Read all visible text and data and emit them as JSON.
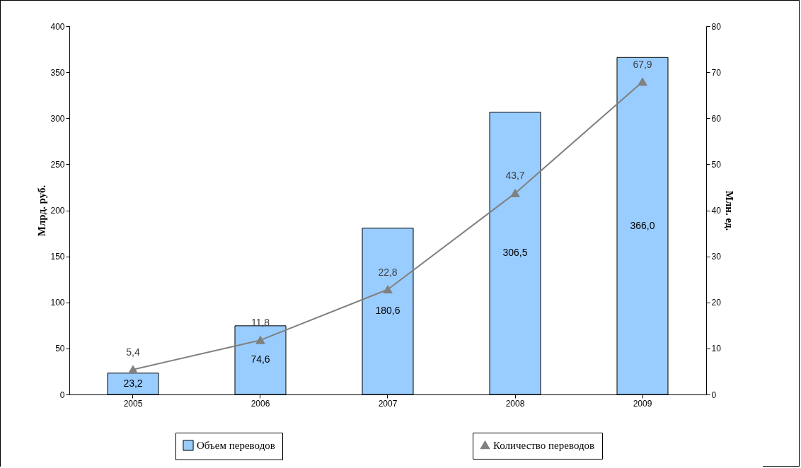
{
  "chart_data": {
    "type": "bar",
    "categories": [
      "2005",
      "2006",
      "2007",
      "2008",
      "2009"
    ],
    "ylabel": "Млрд. руб.",
    "y2label": "Млн. ед.",
    "ylim": [
      0,
      400
    ],
    "yticks": [
      0,
      50,
      100,
      150,
      200,
      250,
      300,
      350,
      400
    ],
    "y2lim": [
      0,
      80
    ],
    "y2ticks": [
      0,
      10,
      20,
      30,
      40,
      50,
      60,
      70,
      80
    ],
    "series": [
      {
        "name": "Объем переводов",
        "color": "#99ccff",
        "values": [
          23.2,
          74.6,
          180.6,
          306.5,
          366.0
        ],
        "value_labels": [
          "23,2",
          "74,6",
          "180,6",
          "306,5",
          "366,0"
        ]
      },
      {
        "name": "Количество переводов",
        "type": "line",
        "axis": "y2",
        "color": "#808080",
        "marker": "triangle",
        "values": [
          5.4,
          11.8,
          22.8,
          43.7,
          67.9
        ],
        "value_labels": [
          "5,4",
          "11,8",
          "22,8",
          "43,7",
          "67,9"
        ]
      }
    ],
    "grid": false,
    "legend": "bottom"
  }
}
